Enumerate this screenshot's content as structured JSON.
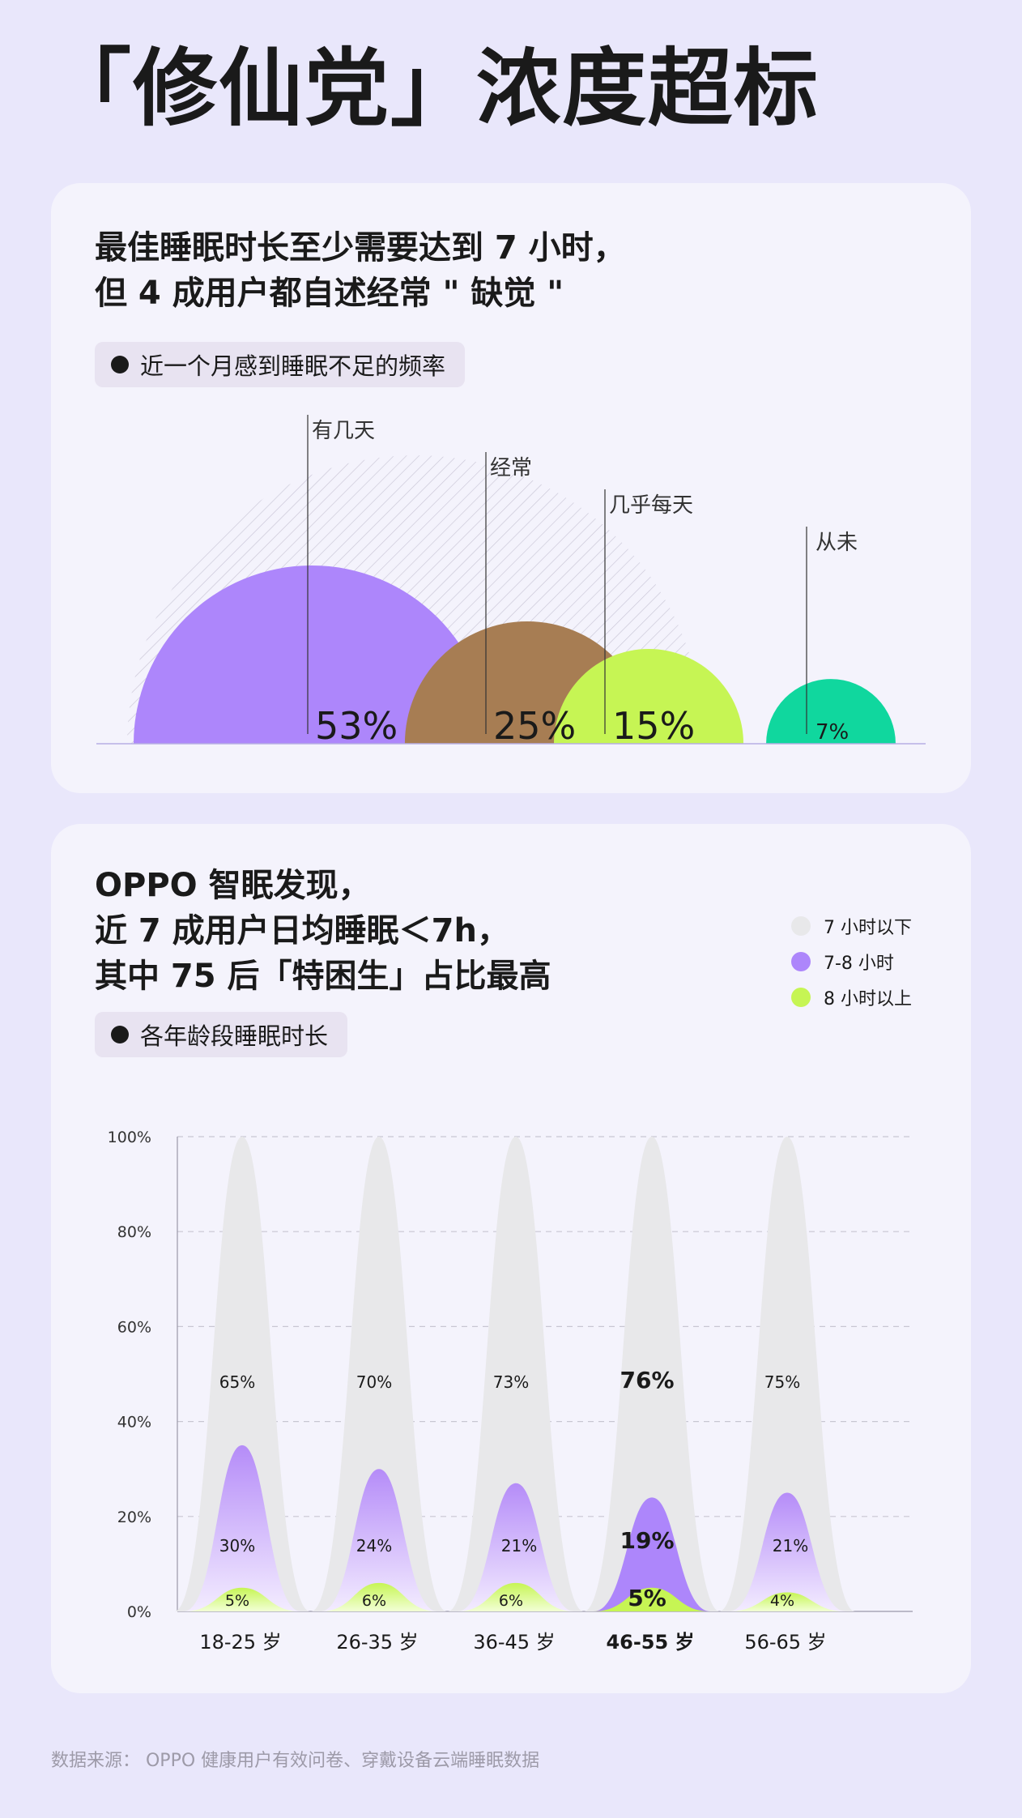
{
  "page_title": "「修仙党」浓度超标",
  "card1": {
    "heading_line1": "最佳睡眠时长至少需要达到 7 小时，",
    "heading_line2": "但 4 成用户都自述经常 \" 缺觉 \"",
    "tag_label": "近一个月感到睡眠不足的频率"
  },
  "card2": {
    "heading_line1": "OPPO 智眠发现，",
    "heading_line2": "近 7 成用户日均睡眠＜7h，",
    "heading_line3": "其中 75 后「特困生」占比最高",
    "tag_label": "各年龄段睡眠时长"
  },
  "source": "数据来源： OPPO 健康用户有效问卷、穿戴设备云端睡眠数据",
  "chart_data": [
    {
      "type": "pie",
      "title": "近一个月感到睡眠不足的频率",
      "categories": [
        "有几天",
        "经常",
        "几乎每天",
        "从未"
      ],
      "values": [
        53,
        25,
        15,
        7
      ],
      "value_labels": [
        "53%",
        "25%",
        "15%",
        "7%"
      ],
      "colors": [
        "#ad86fb",
        "#a77d53",
        "#c6f554",
        "#10d79e"
      ]
    },
    {
      "type": "area",
      "title": "各年龄段睡眠时长",
      "categories": [
        "18-25 岁",
        "26-35 岁",
        "36-45 岁",
        "46-55 岁",
        "56-65 岁"
      ],
      "highlight_category": "46-55 岁",
      "ylim": [
        0,
        100
      ],
      "y_ticks": [
        "0%",
        "20%",
        "40%",
        "60%",
        "80%",
        "100%"
      ],
      "grid": true,
      "legend_position": "top-right",
      "series": [
        {
          "name": "7 小时以下",
          "color": "#e8e8ea",
          "values": [
            65,
            70,
            73,
            76,
            75
          ],
          "labels": [
            "65%",
            "70%",
            "73%",
            "76%",
            "75%"
          ]
        },
        {
          "name": "7-8 小时",
          "color": "#ad86fb",
          "values": [
            30,
            24,
            21,
            19,
            21
          ],
          "labels": [
            "30%",
            "24%",
            "21%",
            "19%",
            "21%"
          ]
        },
        {
          "name": "8 小时以上",
          "color": "#c6f554",
          "values": [
            5,
            6,
            6,
            5,
            4
          ],
          "labels": [
            "5%",
            "6%",
            "6%",
            "5%",
            "4%"
          ]
        }
      ]
    }
  ]
}
